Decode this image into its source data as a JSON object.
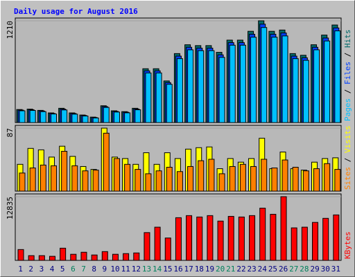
{
  "chart_data": [
    {
      "type": "bar",
      "title": "Daily usage for August 2016",
      "title_color": "#0000ff",
      "ylim": [
        0,
        1210
      ],
      "yticks": [
        1210
      ],
      "legend_separator": " / ",
      "series": [
        {
          "name": "Hits",
          "color": "#006a6a",
          "values": [
            155,
            160,
            145,
            115,
            170,
            115,
            90,
            65,
            200,
            140,
            130,
            170,
            640,
            640,
            495,
            820,
            925,
            915,
            915,
            835,
            980,
            980,
            1085,
            1210,
            1085,
            1100,
            820,
            800,
            925,
            1040,
            1160
          ]
        },
        {
          "name": "Files",
          "color": "#0040ff",
          "values": [
            148,
            152,
            138,
            108,
            160,
            108,
            84,
            60,
            190,
            133,
            123,
            161,
            615,
            615,
            475,
            790,
            895,
            885,
            885,
            805,
            950,
            950,
            1050,
            1170,
            1050,
            1065,
            790,
            770,
            895,
            1005,
            1125
          ]
        },
        {
          "name": "Pages",
          "color": "#00c0ff",
          "values": [
            140,
            144,
            130,
            102,
            150,
            100,
            78,
            55,
            180,
            125,
            116,
            152,
            590,
            590,
            455,
            760,
            865,
            855,
            855,
            775,
            920,
            920,
            1015,
            1130,
            1015,
            1030,
            760,
            740,
            865,
            970,
            1090
          ]
        }
      ]
    },
    {
      "type": "bar",
      "ylim": [
        0,
        87
      ],
      "yticks": [
        87
      ],
      "legend_separator": " / ",
      "series": [
        {
          "name": "Visits",
          "color": "#ffff00",
          "values": [
            37,
            59,
            57,
            47,
            62,
            48,
            34,
            30,
            87,
            47,
            45,
            37,
            53,
            37,
            53,
            45,
            58,
            60,
            61,
            31,
            45,
            40,
            45,
            73,
            31,
            54,
            31,
            29,
            40,
            45,
            46
          ]
        },
        {
          "name": "Sites",
          "color": "#ff8000",
          "values": [
            25,
            32,
            36,
            35,
            55,
            35,
            28,
            29,
            80,
            45,
            37,
            30,
            24,
            28,
            33,
            27,
            34,
            42,
            44,
            24,
            34,
            37,
            34,
            44,
            32,
            43,
            33,
            28,
            31,
            38,
            30
          ]
        }
      ]
    },
    {
      "type": "bar",
      "ylim": [
        0,
        12835
      ],
      "yticks": [
        12835
      ],
      "categories": [
        "1",
        "2",
        "3",
        "4",
        "5",
        "6",
        "7",
        "8",
        "9",
        "10",
        "11",
        "12",
        "13",
        "14",
        "15",
        "16",
        "17",
        "18",
        "19",
        "20",
        "21",
        "22",
        "23",
        "24",
        "25",
        "26",
        "27",
        "28",
        "29",
        "30",
        "31"
      ],
      "category_colors": [
        "#000080",
        "#000080",
        "#000080",
        "#000080",
        "#000080",
        "#00805c",
        "#00805c",
        "#000080",
        "#000080",
        "#000080",
        "#000080",
        "#000080",
        "#00805c",
        "#00805c",
        "#000080",
        "#000080",
        "#000080",
        "#000080",
        "#000080",
        "#00805c",
        "#00805c",
        "#000080",
        "#000080",
        "#000080",
        "#000080",
        "#000080",
        "#00805c",
        "#00805c",
        "#000080",
        "#000080",
        "#000080"
      ],
      "series": [
        {
          "name": "KBytes",
          "color": "#ff0000",
          "values": [
            2185,
            955,
            955,
            820,
            2460,
            1230,
            1640,
            1090,
            1770,
            1230,
            1365,
            1500,
            5600,
            6690,
            4510,
            8600,
            9020,
            8740,
            9020,
            7920,
            8870,
            8740,
            9020,
            10520,
            9290,
            12835,
            6550,
            6690,
            7650,
            8470,
            9160
          ]
        }
      ]
    }
  ]
}
